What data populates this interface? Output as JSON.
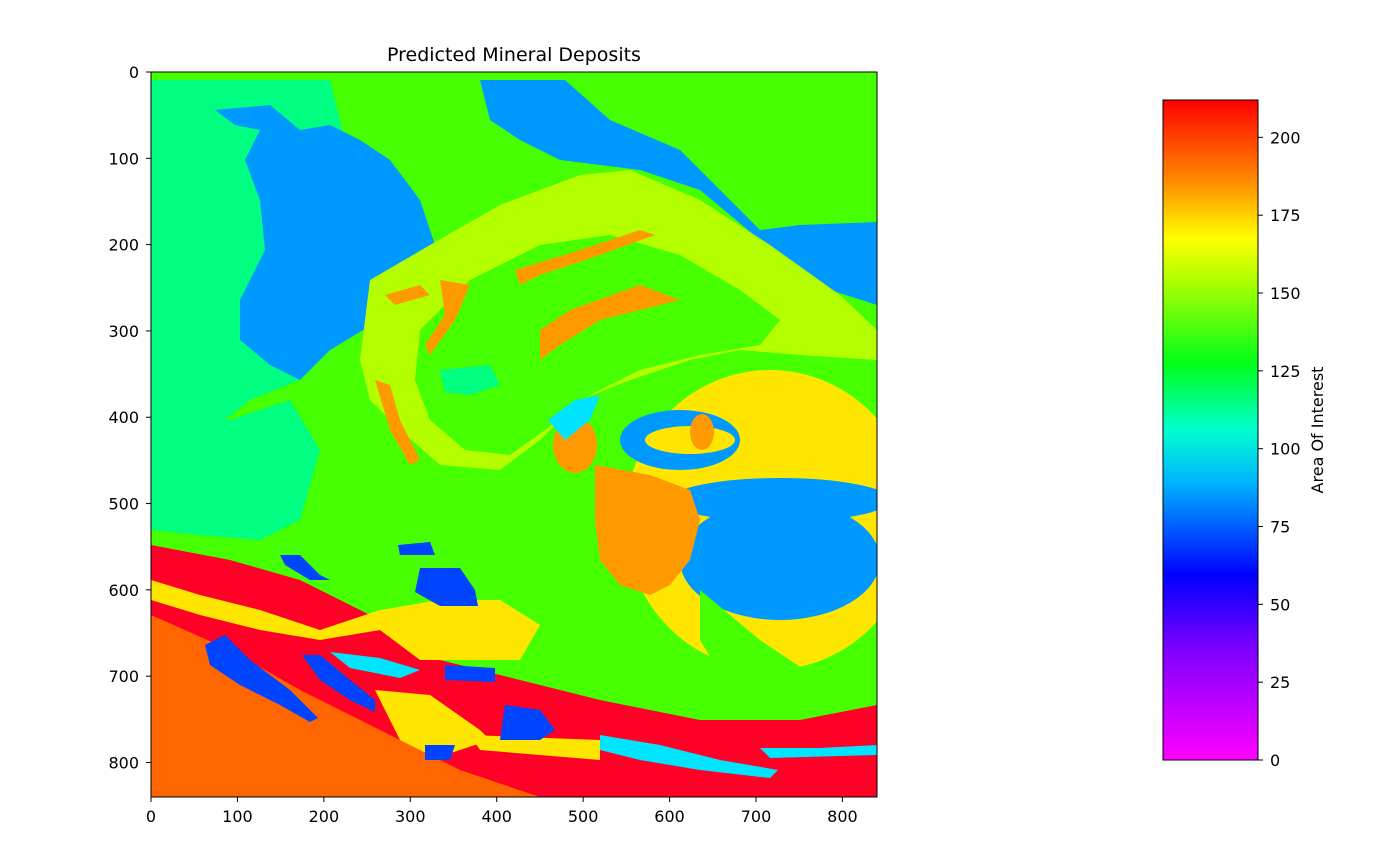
{
  "chart_data": {
    "type": "heatmap",
    "title": "Predicted Mineral Deposits",
    "xlabel": "",
    "ylabel": "",
    "xlim": [
      0,
      840
    ],
    "ylim": [
      840,
      0
    ],
    "x_ticks": [
      0,
      100,
      200,
      300,
      400,
      500,
      600,
      700,
      800
    ],
    "y_ticks": [
      0,
      100,
      200,
      300,
      400,
      500,
      600,
      700,
      800
    ],
    "grid": false,
    "colormap": "gist_rainbow_r",
    "colorbar": {
      "label": "Area Of Interest",
      "range": [
        0,
        212
      ],
      "ticks": [
        0,
        25,
        50,
        75,
        100,
        125,
        150,
        175,
        200
      ],
      "position": "right"
    },
    "value_classes": [
      {
        "value": 191,
        "color": "#ff6600",
        "region": "bottom-left basin"
      },
      {
        "value": 210,
        "color": "#ff0026",
        "region": "lower bands"
      },
      {
        "value": 168,
        "color": "#ffe600",
        "region": "lower bands / right fold"
      },
      {
        "value": 181,
        "color": "#ff9900",
        "region": "central pod"
      },
      {
        "value": 147,
        "color": "#b3ff00",
        "region": "central fold"
      },
      {
        "value": 133,
        "color": "#46ff00",
        "region": "upper and middle"
      },
      {
        "value": 110,
        "color": "#00ff80",
        "region": "left"
      },
      {
        "value": 72,
        "color": "#0099ff",
        "region": "upper left / right"
      },
      {
        "value": 62,
        "color": "#0044ff",
        "region": "small lenses"
      },
      {
        "value": 87,
        "color": "#00e5ff",
        "region": "thin bands"
      }
    ]
  }
}
